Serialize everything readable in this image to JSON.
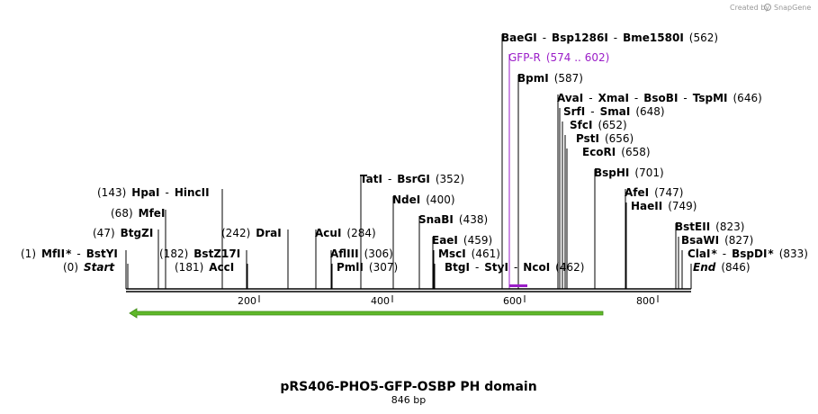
{
  "brand": {
    "text": "Created by",
    "name": "SnapGene"
  },
  "title": "pRS406-PHO5-GFP-OSBP PH domain",
  "length_label": "846 bp",
  "ruler": {
    "ticks": [
      "200",
      "400",
      "600",
      "800"
    ]
  },
  "colors": {
    "feature_arrow": "#5fb82a",
    "primer": "#9b1ec8",
    "line": "#000000"
  },
  "labels": [
    {
      "parts": [
        [
          "pos",
          "(1)"
        ],
        [
          "enz",
          "MfII"
        ],
        [
          "mark",
          "*"
        ],
        [
          "sep",
          "-"
        ],
        [
          "enz",
          "BstYI"
        ]
      ]
    },
    {
      "parts": [
        [
          "pos",
          "(0)"
        ],
        [
          "ital",
          "Start"
        ]
      ]
    },
    {
      "parts": [
        [
          "pos",
          "(47)"
        ],
        [
          "enz",
          "BtgZI"
        ]
      ]
    },
    {
      "parts": [
        [
          "pos",
          "(68)"
        ],
        [
          "enz",
          "MfeI"
        ]
      ]
    },
    {
      "parts": [
        [
          "pos",
          "(143)"
        ],
        [
          "enz",
          "HpaI"
        ],
        [
          "sep",
          "-"
        ],
        [
          "enz",
          "HincII"
        ]
      ]
    },
    {
      "parts": [
        [
          "pos",
          "(182)"
        ],
        [
          "enz",
          "BstZ17I"
        ]
      ]
    },
    {
      "parts": [
        [
          "pos",
          "(181)"
        ],
        [
          "enz",
          "AccI"
        ]
      ]
    },
    {
      "parts": [
        [
          "pos",
          "(242)"
        ],
        [
          "enz",
          "DraI"
        ]
      ]
    },
    {
      "parts": [
        [
          "enz",
          "AcuI"
        ],
        [
          "pos",
          "(284)"
        ]
      ]
    },
    {
      "parts": [
        [
          "enz",
          "TatI"
        ],
        [
          "sep",
          "-"
        ],
        [
          "enz",
          "BsrGI"
        ],
        [
          "pos",
          "(352)"
        ]
      ]
    },
    {
      "parts": [
        [
          "enz",
          "AflIII"
        ],
        [
          "pos",
          "(306)"
        ]
      ]
    },
    {
      "parts": [
        [
          "enz",
          "PmlI"
        ],
        [
          "pos",
          "(307)"
        ]
      ]
    },
    {
      "parts": [
        [
          "enz",
          "NdeI"
        ],
        [
          "pos",
          "(400)"
        ]
      ]
    },
    {
      "parts": [
        [
          "enz",
          "SnaBI"
        ],
        [
          "pos",
          "(438)"
        ]
      ]
    },
    {
      "parts": [
        [
          "enz",
          "EaeI"
        ],
        [
          "pos",
          "(459)"
        ]
      ]
    },
    {
      "parts": [
        [
          "enz",
          "MscI"
        ],
        [
          "pos",
          "(461)"
        ]
      ]
    },
    {
      "parts": [
        [
          "enz",
          "BtgI"
        ],
        [
          "sep",
          "-"
        ],
        [
          "enz",
          "StyI"
        ],
        [
          "sep",
          "-"
        ],
        [
          "enz",
          "NcoI"
        ],
        [
          "pos",
          "(462)"
        ]
      ]
    },
    {
      "parts": [
        [
          "enz",
          "BaeGI"
        ],
        [
          "sep",
          "-"
        ],
        [
          "enz",
          "Bsp1286I"
        ],
        [
          "sep",
          "-"
        ],
        [
          "enz",
          "Bme1580I"
        ],
        [
          "pos",
          "(562)"
        ]
      ]
    },
    {
      "parts": [
        [
          "primer",
          "GFP-R"
        ],
        [
          "primer",
          "(574 .. 602)"
        ]
      ]
    },
    {
      "parts": [
        [
          "enz",
          "BpmI"
        ],
        [
          "pos",
          "(587)"
        ]
      ]
    },
    {
      "parts": [
        [
          "enz",
          "AvaI"
        ],
        [
          "sep",
          "-"
        ],
        [
          "enz",
          "XmaI"
        ],
        [
          "sep",
          "-"
        ],
        [
          "enz",
          "BsoBI"
        ],
        [
          "sep",
          "-"
        ],
        [
          "enz",
          "TspMI"
        ],
        [
          "pos",
          "(646)"
        ]
      ]
    },
    {
      "parts": [
        [
          "enz",
          "SrfI"
        ],
        [
          "sep",
          "-"
        ],
        [
          "enz",
          "SmaI"
        ],
        [
          "pos",
          "(648)"
        ]
      ]
    },
    {
      "parts": [
        [
          "enz",
          "SfcI"
        ],
        [
          "pos",
          "(652)"
        ]
      ]
    },
    {
      "parts": [
        [
          "enz",
          "PstI"
        ],
        [
          "pos",
          "(656)"
        ]
      ]
    },
    {
      "parts": [
        [
          "enz",
          "EcoRI"
        ],
        [
          "pos",
          "(658)"
        ]
      ]
    },
    {
      "parts": [
        [
          "enz",
          "BspHI"
        ],
        [
          "pos",
          "(701)"
        ]
      ]
    },
    {
      "parts": [
        [
          "enz",
          "AfeI"
        ],
        [
          "pos",
          "(747)"
        ]
      ]
    },
    {
      "parts": [
        [
          "enz",
          "HaeII"
        ],
        [
          "pos",
          "(749)"
        ]
      ]
    },
    {
      "parts": [
        [
          "enz",
          "BstEII"
        ],
        [
          "pos",
          "(823)"
        ]
      ]
    },
    {
      "parts": [
        [
          "enz",
          "BsaWI"
        ],
        [
          "pos",
          "(827)"
        ]
      ]
    },
    {
      "parts": [
        [
          "enz",
          "ClaI"
        ],
        [
          "mark",
          "*"
        ],
        [
          "sep",
          "-"
        ],
        [
          "enz",
          "BspDI"
        ],
        [
          "mark",
          "*"
        ],
        [
          "pos",
          "(833)"
        ]
      ]
    },
    {
      "parts": [
        [
          "ital",
          "End"
        ],
        [
          "pos",
          "(846)"
        ]
      ]
    }
  ]
}
